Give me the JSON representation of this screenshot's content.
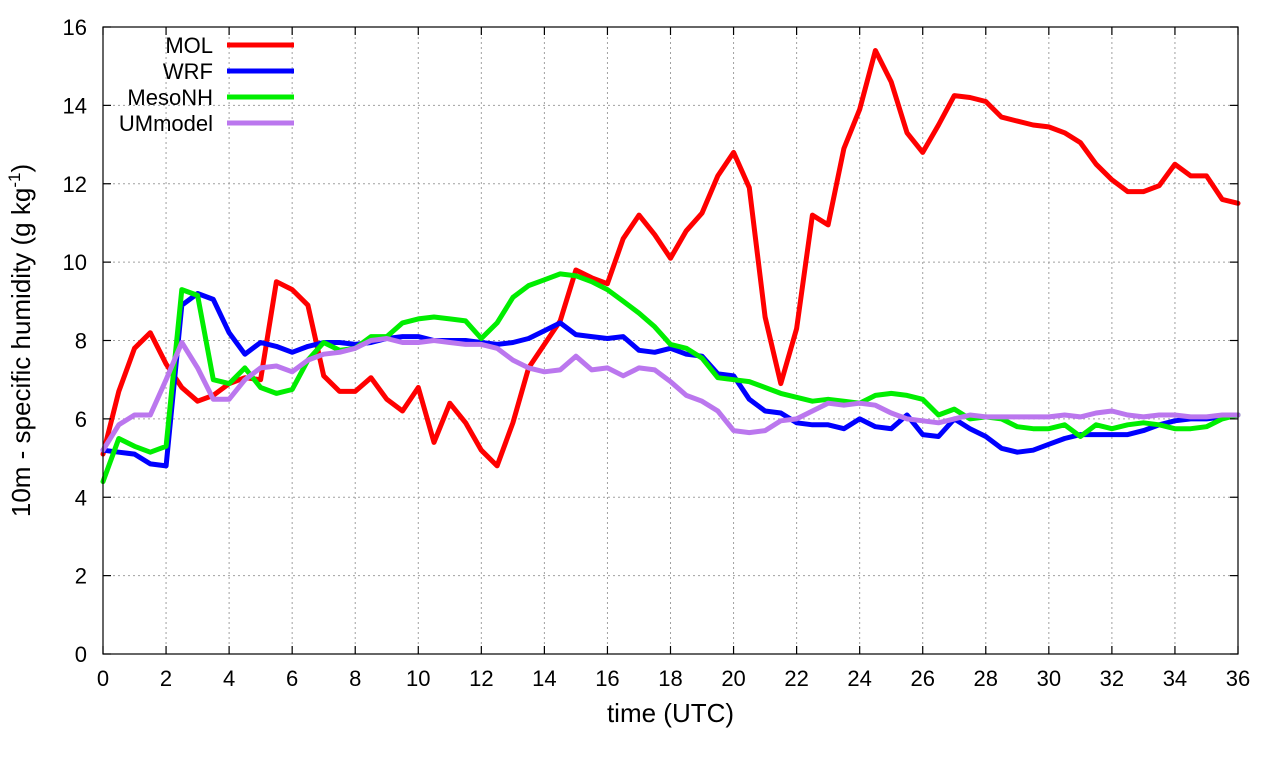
{
  "chart_data": {
    "type": "line",
    "xlabel": "time (UTC)",
    "ylabel": "10m - specific humidity (g kg",
    "ylabel_superscript": "-1",
    "ylabel_suffix": ")",
    "xlim": [
      0,
      36
    ],
    "ylim": [
      0,
      16
    ],
    "xticks": [
      0,
      2,
      4,
      6,
      8,
      10,
      12,
      14,
      16,
      18,
      20,
      22,
      24,
      26,
      28,
      30,
      32,
      34,
      36
    ],
    "yticks": [
      0,
      2,
      4,
      6,
      8,
      10,
      12,
      14,
      16
    ],
    "grid": true,
    "legend_position": "top-left",
    "series": [
      {
        "name": "MOL",
        "color": "#ff0000",
        "points": [
          [
            0,
            5.1
          ],
          [
            0.5,
            6.7
          ],
          [
            1,
            7.8
          ],
          [
            1.5,
            8.2
          ],
          [
            2,
            7.4
          ],
          [
            2.5,
            6.8
          ],
          [
            3,
            6.45
          ],
          [
            3.5,
            6.6
          ],
          [
            4,
            6.9
          ],
          [
            4.5,
            7.05
          ],
          [
            5,
            7.0
          ],
          [
            5.5,
            9.5
          ],
          [
            6,
            9.3
          ],
          [
            6.5,
            8.9
          ],
          [
            7,
            7.1
          ],
          [
            7.5,
            6.7
          ],
          [
            8,
            6.7
          ],
          [
            8.5,
            7.05
          ],
          [
            9,
            6.5
          ],
          [
            9.5,
            6.2
          ],
          [
            10,
            6.8
          ],
          [
            10.5,
            5.4
          ],
          [
            11,
            6.4
          ],
          [
            11.5,
            5.9
          ],
          [
            12,
            5.2
          ],
          [
            12.5,
            4.8
          ],
          [
            13,
            5.9
          ],
          [
            13.5,
            7.3
          ],
          [
            14,
            7.9
          ],
          [
            14.5,
            8.5
          ],
          [
            15,
            9.8
          ],
          [
            15.5,
            9.6
          ],
          [
            16,
            9.45
          ],
          [
            16.5,
            10.6
          ],
          [
            17,
            11.2
          ],
          [
            17.5,
            10.7
          ],
          [
            18,
            10.1
          ],
          [
            18.5,
            10.8
          ],
          [
            19,
            11.25
          ],
          [
            19.5,
            12.2
          ],
          [
            20,
            12.8
          ],
          [
            20.5,
            11.9
          ],
          [
            21,
            8.6
          ],
          [
            21.5,
            6.9
          ],
          [
            22,
            8.3
          ],
          [
            22.5,
            11.2
          ],
          [
            23,
            10.95
          ],
          [
            23.5,
            12.9
          ],
          [
            24,
            13.9
          ],
          [
            24.5,
            15.4
          ],
          [
            25,
            14.6
          ],
          [
            25.5,
            13.3
          ],
          [
            26,
            12.8
          ],
          [
            26.5,
            13.5
          ],
          [
            27,
            14.25
          ],
          [
            27.5,
            14.2
          ],
          [
            28,
            14.1
          ],
          [
            28.5,
            13.7
          ],
          [
            29,
            13.6
          ],
          [
            29.5,
            13.5
          ],
          [
            30,
            13.45
          ],
          [
            30.5,
            13.3
          ],
          [
            31,
            13.05
          ],
          [
            31.5,
            12.5
          ],
          [
            32,
            12.1
          ],
          [
            32.5,
            11.8
          ],
          [
            33,
            11.8
          ],
          [
            33.5,
            11.95
          ],
          [
            34,
            12.5
          ],
          [
            34.5,
            12.2
          ],
          [
            35,
            12.2
          ],
          [
            35.5,
            11.6
          ],
          [
            36,
            11.5
          ]
        ]
      },
      {
        "name": "WRF",
        "color": "#0000ff",
        "points": [
          [
            0,
            5.2
          ],
          [
            0.5,
            5.15
          ],
          [
            1,
            5.1
          ],
          [
            1.5,
            4.85
          ],
          [
            2,
            4.8
          ],
          [
            2.5,
            8.9
          ],
          [
            3,
            9.2
          ],
          [
            3.5,
            9.05
          ],
          [
            4,
            8.2
          ],
          [
            4.5,
            7.65
          ],
          [
            5,
            7.95
          ],
          [
            5.5,
            7.85
          ],
          [
            6,
            7.7
          ],
          [
            6.5,
            7.85
          ],
          [
            7,
            7.95
          ],
          [
            7.5,
            7.95
          ],
          [
            8,
            7.9
          ],
          [
            8.5,
            7.95
          ],
          [
            9,
            8.05
          ],
          [
            9.5,
            8.1
          ],
          [
            10,
            8.1
          ],
          [
            10.5,
            8.0
          ],
          [
            11,
            8.0
          ],
          [
            11.5,
            8.0
          ],
          [
            12,
            7.95
          ],
          [
            12.5,
            7.9
          ],
          [
            13,
            7.95
          ],
          [
            13.5,
            8.05
          ],
          [
            14,
            8.25
          ],
          [
            14.5,
            8.45
          ],
          [
            15,
            8.15
          ],
          [
            15.5,
            8.1
          ],
          [
            16,
            8.05
          ],
          [
            16.5,
            8.1
          ],
          [
            17,
            7.75
          ],
          [
            17.5,
            7.7
          ],
          [
            18,
            7.8
          ],
          [
            18.5,
            7.65
          ],
          [
            19,
            7.6
          ],
          [
            19.5,
            7.15
          ],
          [
            20,
            7.1
          ],
          [
            20.5,
            6.5
          ],
          [
            21,
            6.2
          ],
          [
            21.5,
            6.15
          ],
          [
            22,
            5.9
          ],
          [
            22.5,
            5.85
          ],
          [
            23,
            5.85
          ],
          [
            23.5,
            5.75
          ],
          [
            24,
            6.0
          ],
          [
            24.5,
            5.8
          ],
          [
            25,
            5.75
          ],
          [
            25.5,
            6.1
          ],
          [
            26,
            5.6
          ],
          [
            26.5,
            5.55
          ],
          [
            27,
            6.0
          ],
          [
            27.5,
            5.75
          ],
          [
            28,
            5.55
          ],
          [
            28.5,
            5.25
          ],
          [
            29,
            5.15
          ],
          [
            29.5,
            5.2
          ],
          [
            30,
            5.35
          ],
          [
            30.5,
            5.5
          ],
          [
            31,
            5.6
          ],
          [
            31.5,
            5.6
          ],
          [
            32,
            5.6
          ],
          [
            32.5,
            5.6
          ],
          [
            33,
            5.7
          ],
          [
            33.5,
            5.85
          ],
          [
            34,
            5.95
          ],
          [
            34.5,
            6.0
          ],
          [
            35,
            6.0
          ],
          [
            35.5,
            6.05
          ],
          [
            36,
            6.1
          ]
        ]
      },
      {
        "name": "MesoNH",
        "color": "#00ee00",
        "points": [
          [
            0,
            4.4
          ],
          [
            0.5,
            5.5
          ],
          [
            1,
            5.3
          ],
          [
            1.5,
            5.15
          ],
          [
            2,
            5.3
          ],
          [
            2.5,
            9.3
          ],
          [
            3,
            9.15
          ],
          [
            3.5,
            7.0
          ],
          [
            4,
            6.9
          ],
          [
            4.5,
            7.3
          ],
          [
            5,
            6.8
          ],
          [
            5.5,
            6.65
          ],
          [
            6,
            6.75
          ],
          [
            6.5,
            7.5
          ],
          [
            7,
            7.95
          ],
          [
            7.5,
            7.75
          ],
          [
            8,
            7.8
          ],
          [
            8.5,
            8.1
          ],
          [
            9,
            8.1
          ],
          [
            9.5,
            8.45
          ],
          [
            10,
            8.55
          ],
          [
            10.5,
            8.6
          ],
          [
            11,
            8.55
          ],
          [
            11.5,
            8.5
          ],
          [
            12,
            8.05
          ],
          [
            12.5,
            8.45
          ],
          [
            13,
            9.1
          ],
          [
            13.5,
            9.4
          ],
          [
            14,
            9.55
          ],
          [
            14.5,
            9.7
          ],
          [
            15,
            9.65
          ],
          [
            15.5,
            9.5
          ],
          [
            16,
            9.3
          ],
          [
            16.5,
            9.0
          ],
          [
            17,
            8.7
          ],
          [
            17.5,
            8.35
          ],
          [
            18,
            7.9
          ],
          [
            18.5,
            7.8
          ],
          [
            19,
            7.55
          ],
          [
            19.5,
            7.05
          ],
          [
            20,
            7.0
          ],
          [
            20.5,
            6.95
          ],
          [
            21,
            6.8
          ],
          [
            21.5,
            6.65
          ],
          [
            22,
            6.55
          ],
          [
            22.5,
            6.45
          ],
          [
            23,
            6.5
          ],
          [
            23.5,
            6.45
          ],
          [
            24,
            6.4
          ],
          [
            24.5,
            6.6
          ],
          [
            25,
            6.65
          ],
          [
            25.5,
            6.6
          ],
          [
            26,
            6.5
          ],
          [
            26.5,
            6.1
          ],
          [
            27,
            6.25
          ],
          [
            27.5,
            6.0
          ],
          [
            28,
            6.05
          ],
          [
            28.5,
            6.0
          ],
          [
            29,
            5.8
          ],
          [
            29.5,
            5.75
          ],
          [
            30,
            5.75
          ],
          [
            30.5,
            5.85
          ],
          [
            31,
            5.55
          ],
          [
            31.5,
            5.85
          ],
          [
            32,
            5.75
          ],
          [
            32.5,
            5.85
          ],
          [
            33,
            5.9
          ],
          [
            33.5,
            5.85
          ],
          [
            34,
            5.75
          ],
          [
            34.5,
            5.75
          ],
          [
            35,
            5.8
          ],
          [
            35.5,
            6.0
          ],
          [
            36,
            6.1
          ]
        ]
      },
      {
        "name": "UMmodel",
        "color": "#bb77ee",
        "points": [
          [
            0,
            5.2
          ],
          [
            0.5,
            5.85
          ],
          [
            1,
            6.1
          ],
          [
            1.5,
            6.1
          ],
          [
            2,
            7.0
          ],
          [
            2.5,
            7.95
          ],
          [
            3,
            7.3
          ],
          [
            3.5,
            6.5
          ],
          [
            4,
            6.5
          ],
          [
            4.5,
            7.0
          ],
          [
            5,
            7.3
          ],
          [
            5.5,
            7.35
          ],
          [
            6,
            7.2
          ],
          [
            6.5,
            7.5
          ],
          [
            7,
            7.65
          ],
          [
            7.5,
            7.7
          ],
          [
            8,
            7.8
          ],
          [
            8.5,
            8.0
          ],
          [
            9,
            8.05
          ],
          [
            9.5,
            7.95
          ],
          [
            10,
            7.95
          ],
          [
            10.5,
            8.0
          ],
          [
            11,
            7.95
          ],
          [
            11.5,
            7.9
          ],
          [
            12,
            7.9
          ],
          [
            12.5,
            7.8
          ],
          [
            13,
            7.5
          ],
          [
            13.5,
            7.3
          ],
          [
            14,
            7.2
          ],
          [
            14.5,
            7.25
          ],
          [
            15,
            7.6
          ],
          [
            15.5,
            7.25
          ],
          [
            16,
            7.3
          ],
          [
            16.5,
            7.1
          ],
          [
            17,
            7.3
          ],
          [
            17.5,
            7.25
          ],
          [
            18,
            6.95
          ],
          [
            18.5,
            6.6
          ],
          [
            19,
            6.45
          ],
          [
            19.5,
            6.2
          ],
          [
            20,
            5.7
          ],
          [
            20.5,
            5.65
          ],
          [
            21,
            5.7
          ],
          [
            21.5,
            5.95
          ],
          [
            22,
            6.0
          ],
          [
            22.5,
            6.2
          ],
          [
            23,
            6.4
          ],
          [
            23.5,
            6.35
          ],
          [
            24,
            6.4
          ],
          [
            24.5,
            6.35
          ],
          [
            25,
            6.15
          ],
          [
            25.5,
            6.0
          ],
          [
            26,
            5.95
          ],
          [
            26.5,
            5.9
          ],
          [
            27,
            6.0
          ],
          [
            27.5,
            6.1
          ],
          [
            28,
            6.05
          ],
          [
            28.5,
            6.05
          ],
          [
            29,
            6.05
          ],
          [
            29.5,
            6.05
          ],
          [
            30,
            6.05
          ],
          [
            30.5,
            6.1
          ],
          [
            31,
            6.05
          ],
          [
            31.5,
            6.15
          ],
          [
            32,
            6.2
          ],
          [
            32.5,
            6.1
          ],
          [
            33,
            6.05
          ],
          [
            33.5,
            6.1
          ],
          [
            34,
            6.1
          ],
          [
            34.5,
            6.05
          ],
          [
            35,
            6.05
          ],
          [
            35.5,
            6.1
          ],
          [
            36,
            6.1
          ]
        ]
      }
    ]
  }
}
